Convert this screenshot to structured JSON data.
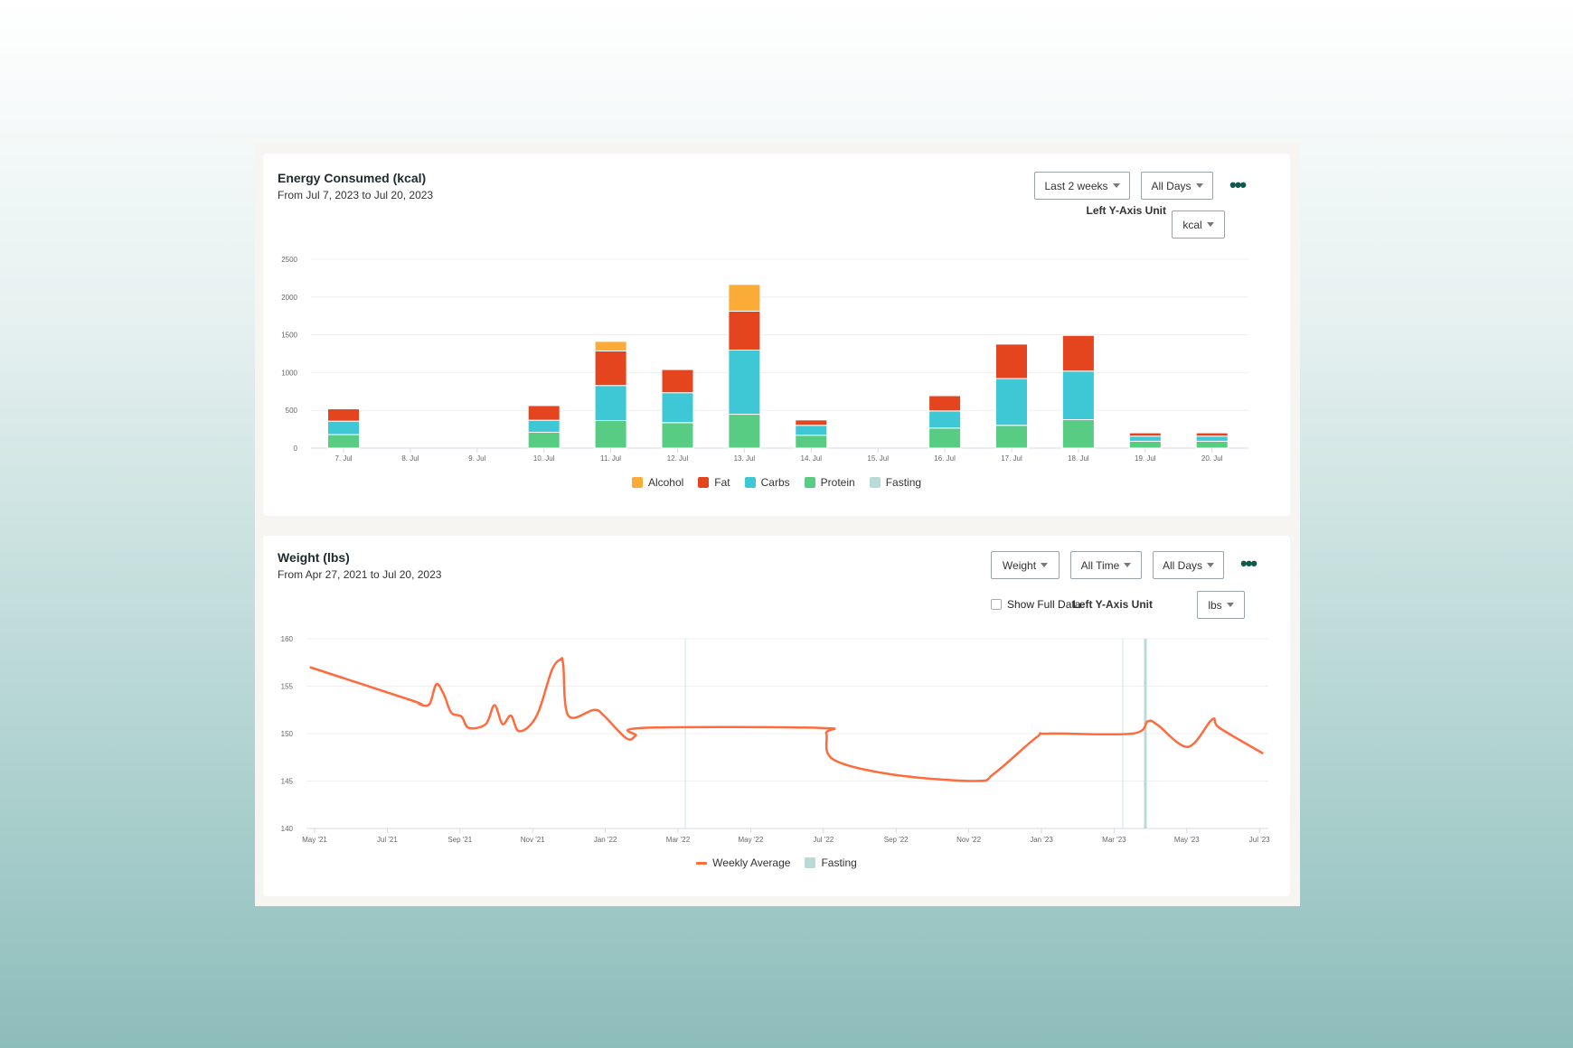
{
  "colors": {
    "alcohol": "#FBAB37",
    "fat": "#E4441E",
    "carbs": "#3EC8D6",
    "protein": "#58CC82",
    "fasting": "#B9DAD6",
    "weight": "#FF6B3D"
  },
  "energy": {
    "title": "Energy Consumed (kcal)",
    "subtitle": "From Jul 7, 2023 to Jul 20, 2023",
    "range_dd": "Last 2 weeks",
    "days_dd": "All Days",
    "unit_label": "Left Y-Axis Unit",
    "unit_dd": "kcal"
  },
  "weight": {
    "title": "Weight (lbs)",
    "subtitle": "From Apr 27, 2021 to Jul 20, 2023",
    "metric_dd": "Weight",
    "range_dd": "All Time",
    "days_dd": "All Days",
    "show_full": "Show Full Data",
    "unit_label": "Left Y-Axis Unit",
    "unit_dd": "lbs"
  },
  "chart_data": [
    {
      "type": "bar",
      "stacked": true,
      "title": "Energy Consumed (kcal)",
      "ylim": [
        0,
        2500
      ],
      "yticks": [
        0,
        500,
        1000,
        1500,
        2000,
        2500
      ],
      "categories": [
        "7. Jul",
        "8. Jul",
        "9. Jul",
        "10. Jul",
        "11. Jul",
        "12. Jul",
        "13. Jul",
        "14. Jul",
        "15. Jul",
        "16. Jul",
        "17. Jul",
        "18. Jul",
        "19. Jul",
        "20. Jul"
      ],
      "series": [
        {
          "name": "Protein",
          "key": "protein",
          "values": [
            179,
            0,
            0,
            210,
            365,
            337,
            448,
            171,
            0,
            266,
            302,
            377,
            91,
            91
          ]
        },
        {
          "name": "Carbs",
          "key": "carbs",
          "values": [
            178,
            0,
            0,
            159,
            464,
            397,
            850,
            131,
            0,
            226,
            619,
            643,
            68,
            68
          ]
        },
        {
          "name": "Fat",
          "key": "fat",
          "values": [
            163,
            0,
            0,
            194,
            457,
            306,
            515,
            71,
            0,
            202,
            456,
            472,
            43,
            43
          ]
        },
        {
          "name": "Alcohol",
          "key": "alcohol",
          "values": [
            0,
            0,
            0,
            0,
            127,
            0,
            354,
            0,
            0,
            0,
            0,
            0,
            0,
            0
          ]
        },
        {
          "name": "Fasting",
          "key": "fasting",
          "values": [
            0,
            0,
            0,
            0,
            0,
            0,
            0,
            0,
            0,
            0,
            0,
            0,
            0,
            0
          ]
        }
      ],
      "legend": [
        "Alcohol",
        "Fat",
        "Carbs",
        "Protein",
        "Fasting"
      ],
      "legend_position": "bottom"
    },
    {
      "type": "line",
      "title": "Weight (lbs)",
      "x_unit": "months since May '21",
      "ylim": [
        140,
        160
      ],
      "yticks": [
        140,
        145,
        150,
        155,
        160
      ],
      "xticks": [
        {
          "m": 0,
          "label": "May '21"
        },
        {
          "m": 2,
          "label": "Jul '21"
        },
        {
          "m": 4,
          "label": "Sep '21"
        },
        {
          "m": 6,
          "label": "Nov '21"
        },
        {
          "m": 8,
          "label": "Jan '22"
        },
        {
          "m": 10,
          "label": "Mar '22"
        },
        {
          "m": 12,
          "label": "May '22"
        },
        {
          "m": 14,
          "label": "Jul '22"
        },
        {
          "m": 16,
          "label": "Sep '22"
        },
        {
          "m": 18,
          "label": "Nov '22"
        },
        {
          "m": 20,
          "label": "Jan '23"
        },
        {
          "m": 22,
          "label": "Mar '23"
        },
        {
          "m": 24,
          "label": "May '23"
        },
        {
          "m": 26,
          "label": "Jul '23"
        }
      ],
      "series": [
        {
          "name": "Weekly Average",
          "points": [
            [
              -0.13,
              157
            ],
            [
              2.67,
              153.5
            ],
            [
              2.89,
              153.1
            ],
            [
              3.16,
              153.1
            ],
            [
              3.35,
              155.2
            ],
            [
              3.56,
              154.1
            ],
            [
              3.76,
              152.2
            ],
            [
              4.04,
              151.8
            ],
            [
              4.24,
              150.6
            ],
            [
              4.71,
              151
            ],
            [
              4.95,
              153
            ],
            [
              5.17,
              151
            ],
            [
              5.4,
              151.9
            ],
            [
              5.6,
              150.3
            ],
            [
              5.91,
              150.8
            ],
            [
              6.18,
              152.5
            ],
            [
              6.53,
              156.7
            ],
            [
              6.76,
              157.8
            ],
            [
              6.84,
              157.3
            ],
            [
              6.98,
              151.9
            ],
            [
              7.69,
              152.5
            ],
            [
              7.96,
              151.9
            ],
            [
              8.58,
              149.5
            ],
            [
              8.84,
              149.8
            ],
            [
              9.02,
              150.6
            ],
            [
              13.9,
              150.6
            ],
            [
              14.08,
              150
            ],
            [
              14.26,
              147.3
            ],
            [
              15.87,
              145.7
            ],
            [
              18.18,
              145
            ],
            [
              18.7,
              145.8
            ],
            [
              19.86,
              149.6
            ],
            [
              20.2,
              150
            ],
            [
              22.5,
              150
            ],
            [
              22.93,
              151.3
            ],
            [
              23.2,
              150.9
            ],
            [
              24.03,
              148.6
            ],
            [
              24.7,
              151.5
            ],
            [
              24.9,
              150.6
            ],
            [
              26.1,
              147.9
            ]
          ]
        }
      ],
      "reference_lines": [
        10.2,
        22.24
      ],
      "fasting_markers": [
        22.86
      ],
      "legend": [
        "Weekly Average",
        "Fasting"
      ],
      "legend_position": "bottom"
    }
  ]
}
